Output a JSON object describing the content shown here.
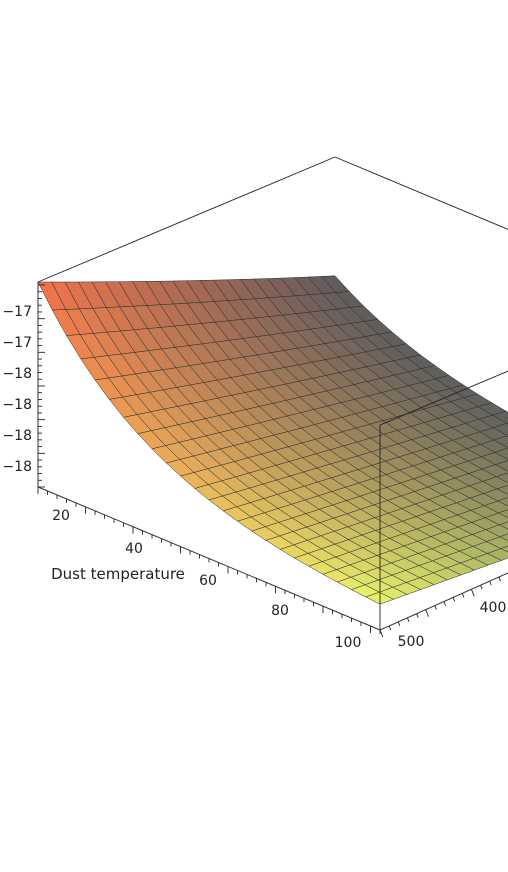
{
  "chart_data": {
    "type": "surface3d",
    "title": "",
    "x_axis": {
      "label": "Dust temperature",
      "ticks": [
        "20",
        "40",
        "60",
        "80",
        "100"
      ],
      "range": [
        10,
        100
      ]
    },
    "y_axis": {
      "label": "",
      "ticks": [
        "400",
        "500"
      ],
      "range": [
        10,
        500
      ]
    },
    "z_axis": {
      "label": "",
      "ticks": [
        "−17",
        "−17",
        "−18",
        "−18",
        "−18",
        "−18"
      ]
    },
    "surface": {
      "x_steps": 24,
      "y_steps": 22,
      "shape": "high at low dust temperature, dropping steeply and flattening toward high dust temperature",
      "colormap": [
        "#f0704a",
        "#e8f06a",
        "#565a5e"
      ]
    },
    "grid": false,
    "legend": "none"
  }
}
